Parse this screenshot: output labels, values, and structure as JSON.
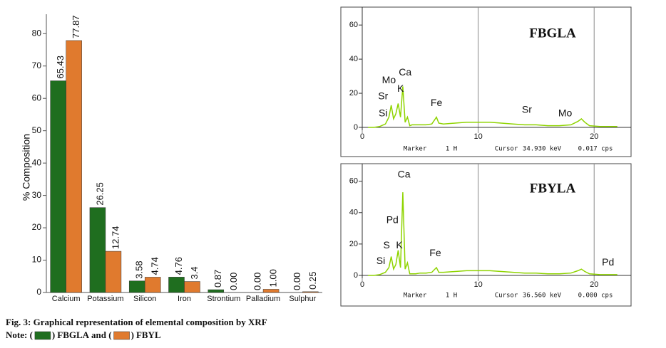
{
  "chart_data": [
    {
      "type": "bar",
      "y_label": "% Composition",
      "categories": [
        "Calcium",
        "Potassium",
        "Silicon",
        "Iron",
        "Strontium",
        "Palladium",
        "Sulphur"
      ],
      "series": [
        {
          "name": "FBGLA",
          "color": "#1f6e1f",
          "values": [
            65.43,
            26.25,
            3.58,
            4.76,
            0.87,
            0,
            0
          ],
          "value_labels": [
            "65.43",
            "26.25",
            "3.58",
            "4.76",
            "0.87",
            "0.00",
            "0.00"
          ]
        },
        {
          "name": "FBYL",
          "color": "#e07a2e",
          "values": [
            77.87,
            12.74,
            4.74,
            3.4,
            0,
            1,
            0.25
          ],
          "value_labels": [
            "77.87",
            "12.74",
            "4.74",
            "3.4",
            "0.00",
            "1.00",
            "0.25"
          ]
        }
      ],
      "ylim": [
        0,
        86
      ],
      "yticks": [
        0,
        10,
        20,
        30,
        40,
        50,
        60,
        70,
        80
      ]
    },
    {
      "type": "line",
      "title": "FBGLA",
      "x": [
        0.5,
        1.0,
        1.5,
        2.0,
        2.3,
        2.5,
        2.7,
        2.9,
        3.1,
        3.3,
        3.5,
        3.7,
        3.9,
        4.1,
        4.3,
        4.6,
        5.0,
        5.5,
        6.0,
        6.2,
        6.4,
        6.6,
        7.0,
        8.0,
        9.0,
        10.0,
        11.0,
        12.0,
        13.0,
        14.0,
        15.0,
        16.0,
        17.0,
        18.0,
        18.6,
        18.9,
        19.2,
        19.6,
        20.5,
        22.0
      ],
      "series": [
        {
          "color": "#8fd400",
          "values": [
            0,
            0,
            0.5,
            2,
            6,
            13,
            5,
            8,
            14,
            6,
            24,
            3,
            6,
            1,
            1.5,
            1.5,
            1.5,
            1.5,
            2,
            4,
            6,
            2.5,
            2,
            2.5,
            3,
            3,
            3,
            2.5,
            2,
            1.5,
            1.5,
            1,
            1,
            1.5,
            3.5,
            5,
            3,
            1,
            0.5,
            0.5
          ]
        }
      ],
      "xlim": [
        0,
        23
      ],
      "xticks": [
        0,
        10,
        20
      ],
      "ylim": [
        0,
        68
      ],
      "yticks": [
        0,
        20,
        40,
        60
      ],
      "grid": true,
      "annotations": [
        {
          "text": "Si",
          "x": 1.8,
          "y": 8
        },
        {
          "text": "Sr",
          "x": 1.8,
          "y": 18
        },
        {
          "text": "Mo",
          "x": 2.3,
          "y": 27.5
        },
        {
          "text": "Ca",
          "x": 3.7,
          "y": 32
        },
        {
          "text": "K",
          "x": 3.3,
          "y": 22.5
        },
        {
          "text": "Fe",
          "x": 6.4,
          "y": 14
        },
        {
          "text": "Sr",
          "x": 14.2,
          "y": 10
        },
        {
          "text": "Mo",
          "x": 17.5,
          "y": 8
        }
      ],
      "footer": [
        "Marker",
        "1 H",
        "Cursor",
        "34.930 keV",
        "0.017 cps"
      ]
    },
    {
      "type": "line",
      "title": "FBYLA",
      "x": [
        0.5,
        1.0,
        1.5,
        2.0,
        2.3,
        2.5,
        2.7,
        2.9,
        3.1,
        3.3,
        3.5,
        3.7,
        3.9,
        4.1,
        4.3,
        4.6,
        5.0,
        5.5,
        6.0,
        6.2,
        6.4,
        6.6,
        7.0,
        8.0,
        9.0,
        10.0,
        11.0,
        12.0,
        13.0,
        14.0,
        15.0,
        16.0,
        17.0,
        18.0,
        18.6,
        18.9,
        19.2,
        19.6,
        20.5,
        22.0
      ],
      "series": [
        {
          "color": "#8fd400",
          "values": [
            0,
            0,
            0.5,
            2,
            5,
            12,
            4,
            7,
            16,
            5,
            53,
            4,
            8,
            1,
            1,
            1,
            1.5,
            1.5,
            2,
            3.5,
            5,
            2,
            2,
            2.5,
            3,
            3,
            3,
            2.5,
            2,
            1.5,
            1.5,
            1,
            1,
            1.5,
            3,
            4,
            2.5,
            1,
            0.5,
            0.5
          ]
        }
      ],
      "xlim": [
        0,
        23
      ],
      "xticks": [
        0,
        10,
        20
      ],
      "ylim": [
        0,
        68
      ],
      "yticks": [
        0,
        20,
        40,
        60
      ],
      "grid": true,
      "annotations": [
        {
          "text": "Ca",
          "x": 3.6,
          "y": 64
        },
        {
          "text": "Pd",
          "x": 2.6,
          "y": 35
        },
        {
          "text": "S",
          "x": 2.1,
          "y": 19
        },
        {
          "text": "K",
          "x": 3.2,
          "y": 19
        },
        {
          "text": "Si",
          "x": 1.6,
          "y": 9
        },
        {
          "text": "Fe",
          "x": 6.3,
          "y": 14
        },
        {
          "text": "Pd",
          "x": 21.2,
          "y": 8
        }
      ],
      "footer": [
        "Marker",
        "1 H",
        "Cursor",
        "36.560 keV",
        "0.000 cps"
      ]
    }
  ],
  "caption": "Fig. 3: Graphical representation of elemental composition by XRF",
  "note": {
    "lead": "Note: (",
    "close": ")",
    "join": "and ("
  }
}
